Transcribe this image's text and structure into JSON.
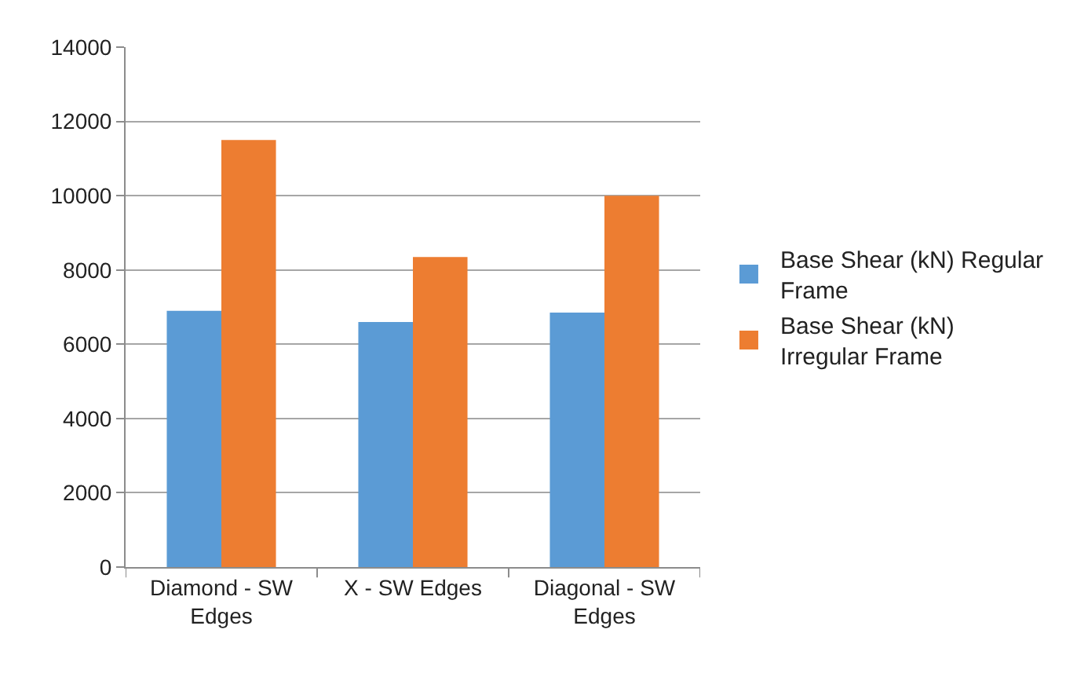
{
  "chart_data": {
    "type": "bar",
    "categories": [
      "Diamond - SW Edges",
      "X - SW Edges",
      "Diagonal - SW Edges"
    ],
    "series": [
      {
        "name": "Base Shear (kN) Regular Frame",
        "color": "#5b9bd5",
        "values": [
          6900,
          6600,
          6850
        ]
      },
      {
        "name": "Base Shear (kN) Irregular Frame",
        "color": "#ed7d31",
        "values": [
          11500,
          8350,
          10000
        ]
      }
    ],
    "ylim": [
      0,
      14000
    ],
    "yticks": [
      0,
      2000,
      4000,
      6000,
      8000,
      10000,
      12000,
      14000
    ],
    "grid": "y",
    "legend": "right"
  }
}
